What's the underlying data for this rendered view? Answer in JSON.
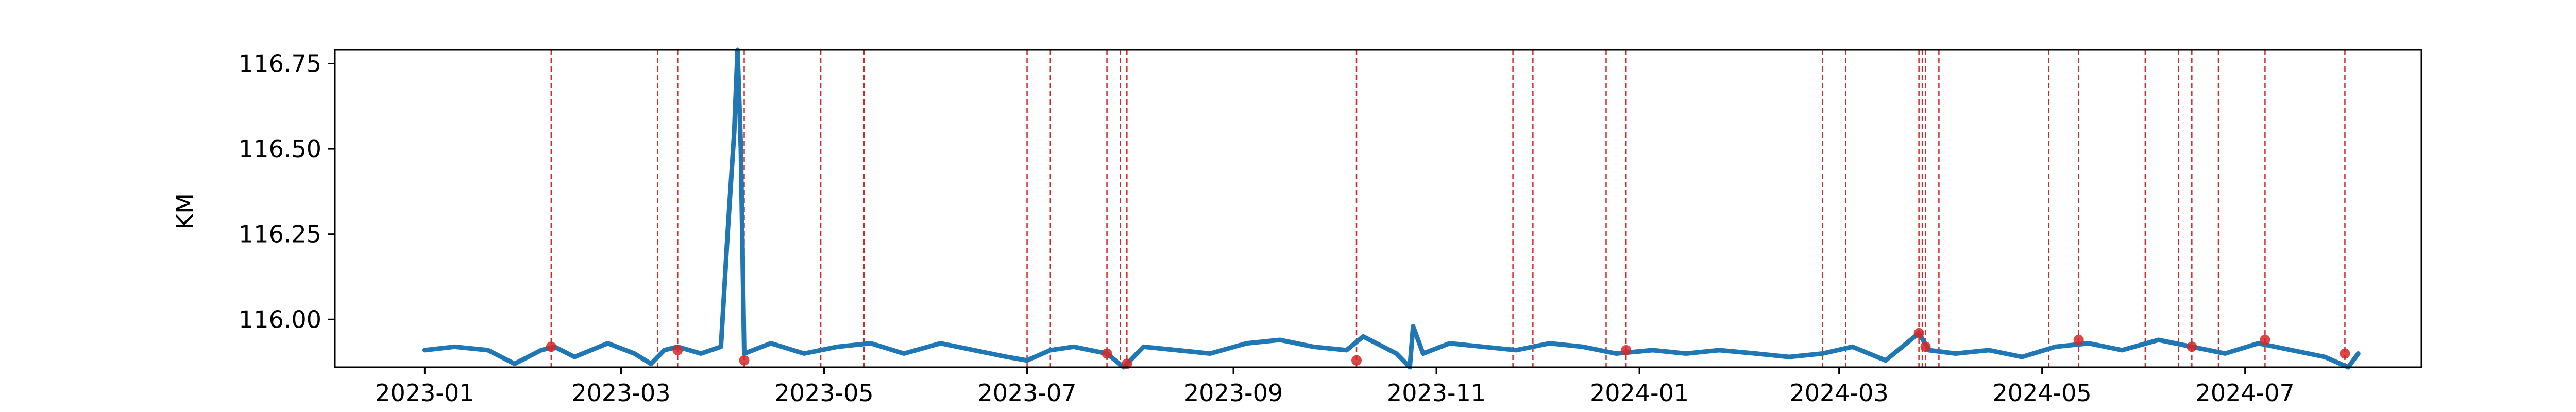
{
  "chart_data": {
    "type": "line",
    "title": "",
    "xlabel": "",
    "ylabel": "KM",
    "xlim": [
      "2022-12-05",
      "2024-08-23"
    ],
    "ylim": [
      115.86,
      116.79
    ],
    "yticks": [
      116.0,
      116.25,
      116.5,
      116.75
    ],
    "ytick_labels": [
      "116.00",
      "116.25",
      "116.50",
      "116.75"
    ],
    "xticks": [
      "2023-01-01",
      "2023-03-01",
      "2023-05-01",
      "2023-07-01",
      "2023-09-01",
      "2023-11-01",
      "2024-01-01",
      "2024-03-01",
      "2024-05-01",
      "2024-07-01"
    ],
    "xtick_labels": [
      "2023-01",
      "2023-03",
      "2023-05",
      "2023-07",
      "2023-09",
      "2023-11",
      "2024-01",
      "2024-03",
      "2024-05",
      "2024-07"
    ],
    "grid": false,
    "line_color": "#1f77b4",
    "event_color": "#d62728",
    "series": [
      {
        "x": [
          "2023-01-01",
          "2023-01-10",
          "2023-01-20",
          "2023-01-28",
          "2023-02-05",
          "2023-02-09",
          "2023-02-15",
          "2023-02-25",
          "2023-03-05",
          "2023-03-10",
          "2023-03-14",
          "2023-03-18",
          "2023-03-25",
          "2023-03-31",
          "2023-04-02",
          "2023-04-04",
          "2023-04-05",
          "2023-04-06",
          "2023-04-07",
          "2023-04-15",
          "2023-04-25",
          "2023-05-05",
          "2023-05-15",
          "2023-05-25",
          "2023-06-05",
          "2023-06-15",
          "2023-06-25",
          "2023-07-01",
          "2023-07-08",
          "2023-07-15",
          "2023-07-25",
          "2023-07-30",
          "2023-08-05",
          "2023-08-15",
          "2023-08-25",
          "2023-09-05",
          "2023-09-15",
          "2023-09-25",
          "2023-10-05",
          "2023-10-10",
          "2023-10-20",
          "2023-10-24",
          "2023-10-25",
          "2023-10-28",
          "2023-11-05",
          "2023-11-15",
          "2023-11-25",
          "2023-12-05",
          "2023-12-15",
          "2023-12-25",
          "2024-01-05",
          "2024-01-15",
          "2024-01-25",
          "2024-02-05",
          "2024-02-15",
          "2024-02-25",
          "2024-03-05",
          "2024-03-15",
          "2024-03-25",
          "2024-03-28",
          "2024-04-05",
          "2024-04-15",
          "2024-04-25",
          "2024-05-05",
          "2024-05-15",
          "2024-05-25",
          "2024-06-05",
          "2024-06-15",
          "2024-06-25",
          "2024-07-05",
          "2024-07-15",
          "2024-07-25",
          "2024-08-01",
          "2024-08-04"
        ],
        "y": [
          115.91,
          115.92,
          115.91,
          115.87,
          115.91,
          115.92,
          115.89,
          115.93,
          115.9,
          115.87,
          115.91,
          115.92,
          115.9,
          115.92,
          116.25,
          116.55,
          116.79,
          116.5,
          115.9,
          115.93,
          115.9,
          115.92,
          115.93,
          115.9,
          115.93,
          115.91,
          115.89,
          115.88,
          115.91,
          115.92,
          115.9,
          115.86,
          115.92,
          115.91,
          115.9,
          115.93,
          115.94,
          115.92,
          115.91,
          115.95,
          115.9,
          115.86,
          115.98,
          115.9,
          115.93,
          115.92,
          115.91,
          115.93,
          115.92,
          115.9,
          115.91,
          115.9,
          115.91,
          115.9,
          115.89,
          115.9,
          115.92,
          115.88,
          115.96,
          115.91,
          115.9,
          115.91,
          115.89,
          115.92,
          115.93,
          115.91,
          115.94,
          115.92,
          115.9,
          115.93,
          115.91,
          115.89,
          115.86,
          115.9
        ]
      }
    ],
    "events": [
      "2023-02-08",
      "2023-03-12",
      "2023-03-18",
      "2023-04-07",
      "2023-04-30",
      "2023-05-13",
      "2023-07-01",
      "2023-07-08",
      "2023-07-25",
      "2023-07-29",
      "2023-07-31",
      "2023-10-08",
      "2023-11-24",
      "2023-11-30",
      "2023-12-22",
      "2023-12-28",
      "2024-02-25",
      "2024-03-03",
      "2024-03-25",
      "2024-03-26",
      "2024-03-27",
      "2024-03-31",
      "2024-05-03",
      "2024-05-12",
      "2024-06-01",
      "2024-06-11",
      "2024-06-15",
      "2024-06-23",
      "2024-07-07",
      "2024-07-31"
    ],
    "markers": [
      {
        "x": "2023-02-08",
        "y": 115.92
      },
      {
        "x": "2023-03-18",
        "y": 115.91
      },
      {
        "x": "2023-04-07",
        "y": 115.88
      },
      {
        "x": "2023-07-25",
        "y": 115.9
      },
      {
        "x": "2023-07-31",
        "y": 115.87
      },
      {
        "x": "2023-10-08",
        "y": 115.88
      },
      {
        "x": "2023-12-28",
        "y": 115.91
      },
      {
        "x": "2024-03-25",
        "y": 115.96
      },
      {
        "x": "2024-03-27",
        "y": 115.92
      },
      {
        "x": "2024-05-12",
        "y": 115.94
      },
      {
        "x": "2024-06-15",
        "y": 115.92
      },
      {
        "x": "2024-07-07",
        "y": 115.94
      },
      {
        "x": "2024-07-31",
        "y": 115.9
      }
    ]
  }
}
